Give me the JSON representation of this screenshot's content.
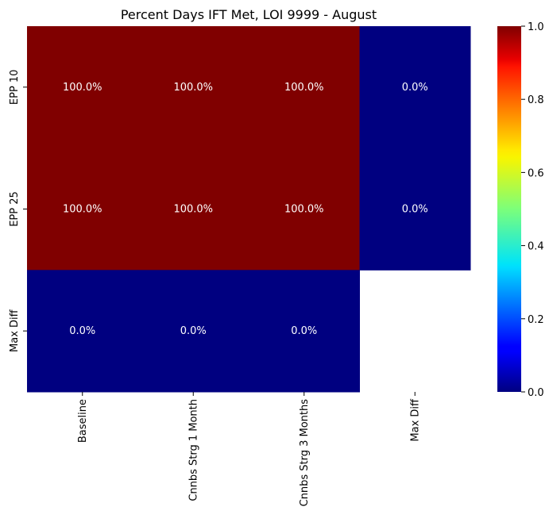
{
  "chart_data": {
    "type": "heatmap",
    "title": "Percent Days IFT Met, LOI 9999 - August",
    "xlabel": "",
    "ylabel": "",
    "x_categories": [
      "Baseline",
      "Cnnbs Strg 1 Month",
      "Cnnbs Strg 3 Months",
      "Max Diff"
    ],
    "y_categories": [
      "EPP 10",
      "EPP 25",
      "Max Diff"
    ],
    "values": [
      [
        1.0,
        1.0,
        1.0,
        0.0
      ],
      [
        1.0,
        1.0,
        1.0,
        0.0
      ],
      [
        0.0,
        0.0,
        0.0,
        null
      ]
    ],
    "cell_labels": [
      [
        "100.0%",
        "100.0%",
        "100.0%",
        "0.0%"
      ],
      [
        "100.0%",
        "100.0%",
        "100.0%",
        "0.0%"
      ],
      [
        "0.0%",
        "0.0%",
        "0.0%",
        ""
      ]
    ],
    "colormap": "jet",
    "vmin": 0.0,
    "vmax": 1.0,
    "colorbar": {
      "ticks": [
        0.0,
        0.2,
        0.4,
        0.6,
        0.8,
        1.0
      ],
      "tick_labels": [
        "0.0",
        "0.2",
        "0.4",
        "0.6",
        "0.8",
        "1.0"
      ]
    },
    "annotation_color": "#ffffff",
    "colors": {
      "high": "#800000",
      "low": "#000080"
    }
  }
}
